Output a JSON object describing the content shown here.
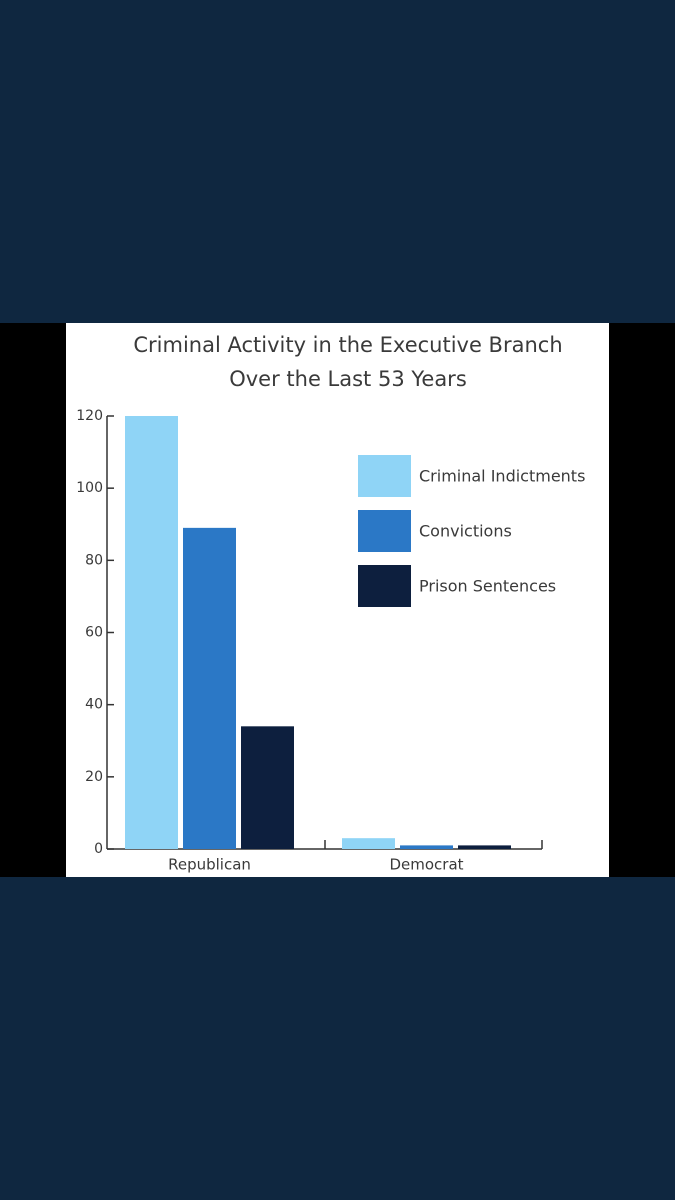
{
  "chart_data": {
    "type": "bar",
    "title": [
      "Criminal Activity in the Executive Branch",
      "Over the Last 53 Years"
    ],
    "categories": [
      "Republican",
      "Democrat"
    ],
    "series": [
      {
        "name": "Criminal Indictments",
        "color": "#8fd4f6",
        "values": [
          120,
          3
        ]
      },
      {
        "name": "Convictions",
        "color": "#2b78c6",
        "values": [
          89,
          1
        ]
      },
      {
        "name": "Prison Sentences",
        "color": "#0d1f3e",
        "values": [
          34,
          1
        ]
      }
    ],
    "ylim": [
      0,
      120
    ],
    "yticks": [
      0,
      20,
      40,
      60,
      80,
      100,
      120
    ],
    "legend": "upper right"
  }
}
